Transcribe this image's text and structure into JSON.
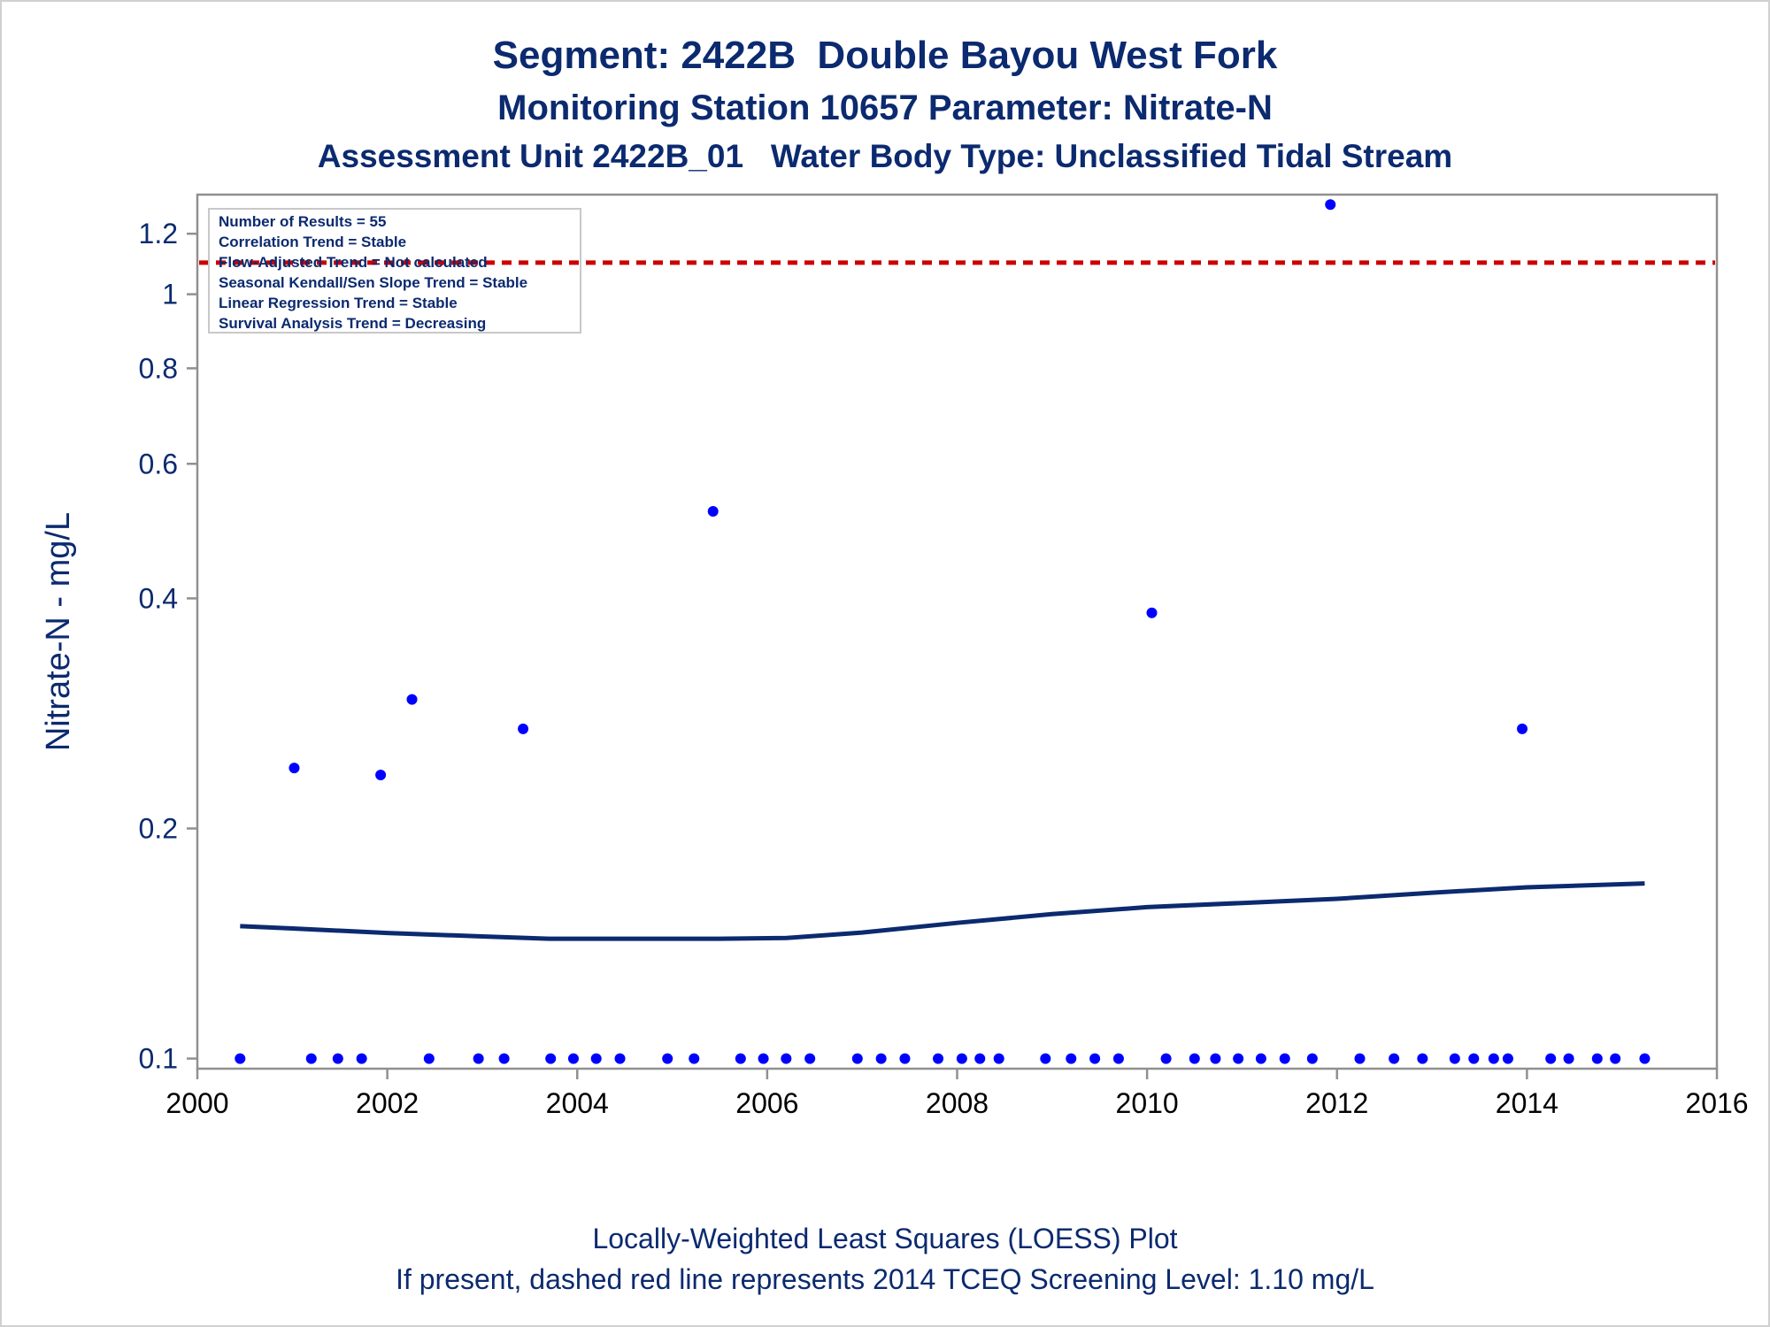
{
  "titles": {
    "line1": "Segment: 2422B  Double Bayou West Fork",
    "line2": "Monitoring Station 10657 Parameter: Nitrate-N",
    "line3": "Assessment Unit 2422B_01   Water Body Type: Unclassified Tidal Stream"
  },
  "footnotes": {
    "line1": "Locally-Weighted Least Squares (LOESS) Plot",
    "line2": "If present, dashed red line represents 2014 TCEQ Screening Level: 1.10 mg/L"
  },
  "colors": {
    "text": "#0b2a6f",
    "points": "#0000ff",
    "loess": "#0b2a6f",
    "reference": "#cc0000",
    "axis": "#909090"
  },
  "chart_data": {
    "type": "scatter",
    "ylabel": "Nitrate-N - mg/L",
    "xlabel": "",
    "y_scale": "log",
    "xlim": [
      2000,
      2016
    ],
    "ylim": [
      0.097,
      1.35
    ],
    "x_ticks": [
      2000,
      2002,
      2004,
      2006,
      2008,
      2010,
      2012,
      2014,
      2016
    ],
    "y_ticks": [
      0.1,
      0.2,
      0.4,
      0.6,
      0.8,
      1,
      1.2
    ],
    "y_tick_labels": [
      "0.1",
      "0.2",
      "0.4",
      "0.6",
      "0.8",
      "1",
      "1.2"
    ],
    "stats_box": [
      "Number of Results = 55",
      "Correlation Trend = Stable",
      "Flow-Adjusted Trend = Not calculated",
      "Seasonal Kendall/Sen Slope Trend = Stable",
      "Linear Regression Trend = Stable",
      "Survival Analysis Trend = Decreasing"
    ],
    "reference_line": {
      "y": 1.1
    },
    "points": [
      {
        "x": 2000.45,
        "y": 0.1
      },
      {
        "x": 2001.02,
        "y": 0.24
      },
      {
        "x": 2001.2,
        "y": 0.1
      },
      {
        "x": 2001.48,
        "y": 0.1
      },
      {
        "x": 2001.73,
        "y": 0.1
      },
      {
        "x": 2001.93,
        "y": 0.235
      },
      {
        "x": 2002.26,
        "y": 0.295
      },
      {
        "x": 2002.44,
        "y": 0.1
      },
      {
        "x": 2002.96,
        "y": 0.1
      },
      {
        "x": 2003.23,
        "y": 0.1
      },
      {
        "x": 2003.43,
        "y": 0.27
      },
      {
        "x": 2003.72,
        "y": 0.1
      },
      {
        "x": 2003.96,
        "y": 0.1
      },
      {
        "x": 2004.2,
        "y": 0.1
      },
      {
        "x": 2004.45,
        "y": 0.1
      },
      {
        "x": 2004.95,
        "y": 0.1
      },
      {
        "x": 2005.23,
        "y": 0.1
      },
      {
        "x": 2005.43,
        "y": 0.52
      },
      {
        "x": 2005.72,
        "y": 0.1
      },
      {
        "x": 2005.96,
        "y": 0.1
      },
      {
        "x": 2006.2,
        "y": 0.1
      },
      {
        "x": 2006.45,
        "y": 0.1
      },
      {
        "x": 2006.95,
        "y": 0.1
      },
      {
        "x": 2007.2,
        "y": 0.1
      },
      {
        "x": 2007.45,
        "y": 0.1
      },
      {
        "x": 2007.8,
        "y": 0.1
      },
      {
        "x": 2008.05,
        "y": 0.1
      },
      {
        "x": 2008.24,
        "y": 0.1
      },
      {
        "x": 2008.44,
        "y": 0.1
      },
      {
        "x": 2008.93,
        "y": 0.1
      },
      {
        "x": 2009.2,
        "y": 0.1
      },
      {
        "x": 2009.45,
        "y": 0.1
      },
      {
        "x": 2009.7,
        "y": 0.1
      },
      {
        "x": 2010.05,
        "y": 0.383
      },
      {
        "x": 2010.2,
        "y": 0.1
      },
      {
        "x": 2010.5,
        "y": 0.1
      },
      {
        "x": 2010.72,
        "y": 0.1
      },
      {
        "x": 2010.96,
        "y": 0.1
      },
      {
        "x": 2011.2,
        "y": 0.1
      },
      {
        "x": 2011.45,
        "y": 0.1
      },
      {
        "x": 2011.74,
        "y": 0.1
      },
      {
        "x": 2011.93,
        "y": 1.31
      },
      {
        "x": 2012.24,
        "y": 0.1
      },
      {
        "x": 2012.6,
        "y": 0.1
      },
      {
        "x": 2012.9,
        "y": 0.1
      },
      {
        "x": 2013.24,
        "y": 0.1
      },
      {
        "x": 2013.44,
        "y": 0.1
      },
      {
        "x": 2013.65,
        "y": 0.1
      },
      {
        "x": 2013.8,
        "y": 0.1
      },
      {
        "x": 2013.95,
        "y": 0.27
      },
      {
        "x": 2014.25,
        "y": 0.1
      },
      {
        "x": 2014.44,
        "y": 0.1
      },
      {
        "x": 2014.74,
        "y": 0.1
      },
      {
        "x": 2014.93,
        "y": 0.1
      },
      {
        "x": 2015.24,
        "y": 0.1
      }
    ],
    "loess": {
      "x": [
        2000.45,
        2001.0,
        2002.0,
        2003.0,
        2003.7,
        2004.5,
        2005.5,
        2006.2,
        2007.0,
        2008.0,
        2009.0,
        2010.0,
        2011.0,
        2012.0,
        2013.0,
        2014.0,
        2015.24
      ],
      "y": [
        0.149,
        0.148,
        0.146,
        0.1445,
        0.1435,
        0.1435,
        0.1435,
        0.1438,
        0.1462,
        0.1505,
        0.1545,
        0.1578,
        0.1598,
        0.1618,
        0.1648,
        0.1675,
        0.1695
      ]
    }
  }
}
